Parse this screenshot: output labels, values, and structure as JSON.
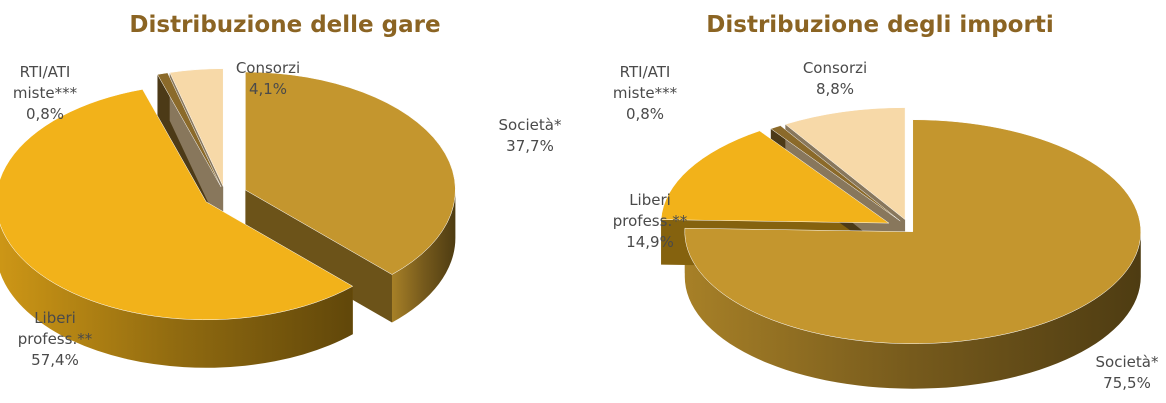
{
  "chart_data": [
    {
      "type": "pie3d",
      "title": "Distribuzione delle gare",
      "categories": [
        "Società*",
        "Liberi profess.**",
        "RTI/ATI miste***",
        "Consorzi"
      ],
      "values": [
        37.7,
        57.4,
        0.8,
        4.1
      ],
      "value_labels": [
        "37,7%",
        "57,4%",
        "0,8%",
        "4,1%"
      ],
      "colors": [
        "#c4962e",
        "#f2b21a",
        "#8b6a2a",
        "#f7d9a8"
      ]
    },
    {
      "type": "pie3d",
      "title": "Distribuzione degli importi",
      "categories": [
        "Società*",
        "Liberi profess.**",
        "RTI/ATI miste***",
        "Consorzi"
      ],
      "values": [
        75.5,
        14.9,
        0.8,
        8.8
      ],
      "value_labels": [
        "75,5%",
        "14,9%",
        "0,8%",
        "8,8%"
      ],
      "colors": [
        "#c4962e",
        "#f2b21a",
        "#8b6a2a",
        "#f7d9a8"
      ]
    }
  ]
}
